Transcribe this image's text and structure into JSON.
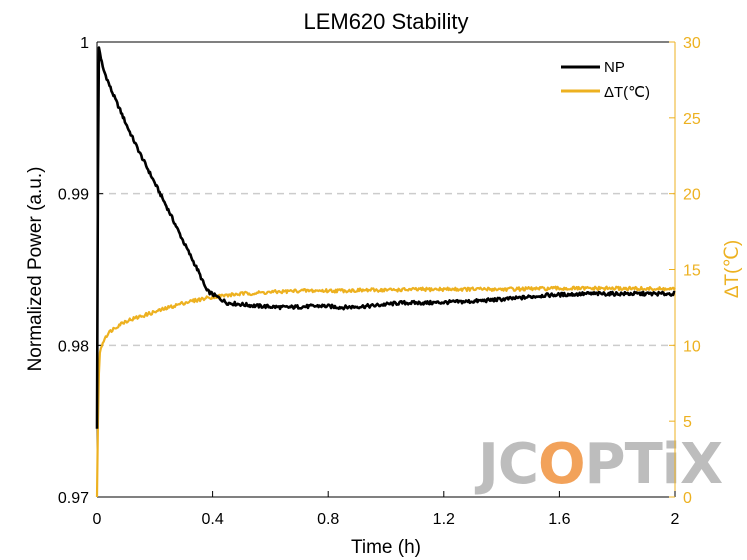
{
  "chart_data": {
    "type": "line",
    "title": "LEM620 Stability",
    "xlabel": "Time (h)",
    "ylabel": "Normalized Power (a.u.)",
    "y2label": "ΔT(℃)",
    "xlim": [
      0,
      2
    ],
    "ylim": [
      0.97,
      1
    ],
    "y2lim": [
      0,
      30
    ],
    "xticks": [
      "0",
      "0.4",
      "0.8",
      "1.2",
      "1.6",
      "2"
    ],
    "yticks": [
      "0.97",
      "0.98",
      "0.99",
      "1"
    ],
    "y2ticks": [
      "0",
      "5",
      "10",
      "15",
      "20",
      "25",
      "30"
    ],
    "grid": "horizontal dashed at 0.98 and 0.99",
    "legend_position": "top-right",
    "colors": {
      "np": "#000000",
      "dt": "#EDB120",
      "grid": "#cccccc",
      "watermark": "#bdbdbd",
      "watermark_accent": "#f2a25a"
    },
    "series": [
      {
        "name": "NP",
        "axis": "left",
        "x": [
          0,
          0.005,
          0.02,
          0.05,
          0.08,
          0.11,
          0.15,
          0.2,
          0.25,
          0.3,
          0.35,
          0.38,
          0.45,
          0.55,
          0.65,
          0.78,
          0.85,
          0.95,
          1.05,
          1.15,
          1.3,
          1.45,
          1.55,
          1.7,
          1.85,
          2
        ],
        "y": [
          0.9745,
          0.9998,
          0.9983,
          0.9968,
          0.9955,
          0.9942,
          0.9926,
          0.9907,
          0.9888,
          0.9868,
          0.9849,
          0.9836,
          0.9828,
          0.9826,
          0.9825,
          0.9826,
          0.9825,
          0.9826,
          0.9828,
          0.9828,
          0.9829,
          0.9831,
          0.9833,
          0.9834,
          0.9834,
          0.9834
        ]
      },
      {
        "name": "ΔT(℃)",
        "axis": "right",
        "x": [
          0,
          0.005,
          0.01,
          0.02,
          0.03,
          0.05,
          0.08,
          0.1,
          0.15,
          0.2,
          0.25,
          0.3,
          0.35,
          0.4,
          0.5,
          0.6,
          0.7,
          0.8,
          1.0,
          1.2,
          1.4,
          1.6,
          1.8,
          2
        ],
        "y": [
          0,
          7.5,
          9.5,
          10.2,
          10.6,
          11.0,
          11.4,
          11.6,
          11.9,
          12.2,
          12.5,
          12.8,
          13.0,
          13.2,
          13.4,
          13.5,
          13.6,
          13.6,
          13.65,
          13.7,
          13.7,
          13.75,
          13.75,
          13.7
        ]
      }
    ]
  },
  "watermark": {
    "prefix": "JC",
    "accent": "O",
    "suffix": "PTiX"
  }
}
